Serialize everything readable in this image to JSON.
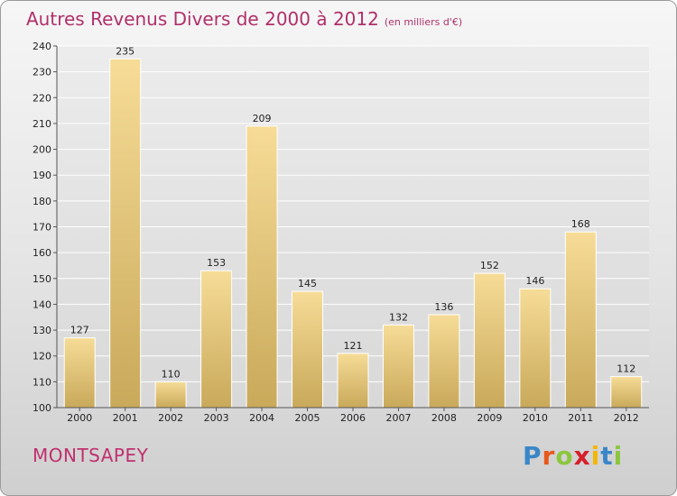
{
  "title": "Autres Revenus Divers de 2000 à 2012",
  "title_unit": "(en milliers d'€)",
  "commune": "MONTSAPEY",
  "logo": {
    "letters": [
      "P",
      "r",
      "o",
      "x",
      "i",
      "t",
      "i"
    ],
    "colors": [
      "#3a86c8",
      "#e8581b",
      "#8cc63f",
      "#d6202a",
      "#f2b705",
      "#3a86c8",
      "#8cc63f"
    ]
  },
  "colors": {
    "bar_light": "#f6dc97",
    "bar_dark": "#c9a95a",
    "title": "#b0306a"
  },
  "chart_data": {
    "type": "bar",
    "categories": [
      "2000",
      "2001",
      "2002",
      "2003",
      "2004",
      "2005",
      "2006",
      "2007",
      "2008",
      "2009",
      "2010",
      "2011",
      "2012"
    ],
    "values": [
      127,
      235,
      110,
      153,
      209,
      145,
      121,
      132,
      136,
      152,
      146,
      168,
      112
    ],
    "ylim": [
      100,
      240
    ],
    "yticks": [
      100,
      110,
      120,
      130,
      140,
      150,
      160,
      170,
      180,
      190,
      200,
      210,
      220,
      230,
      240
    ],
    "grid": true
  }
}
